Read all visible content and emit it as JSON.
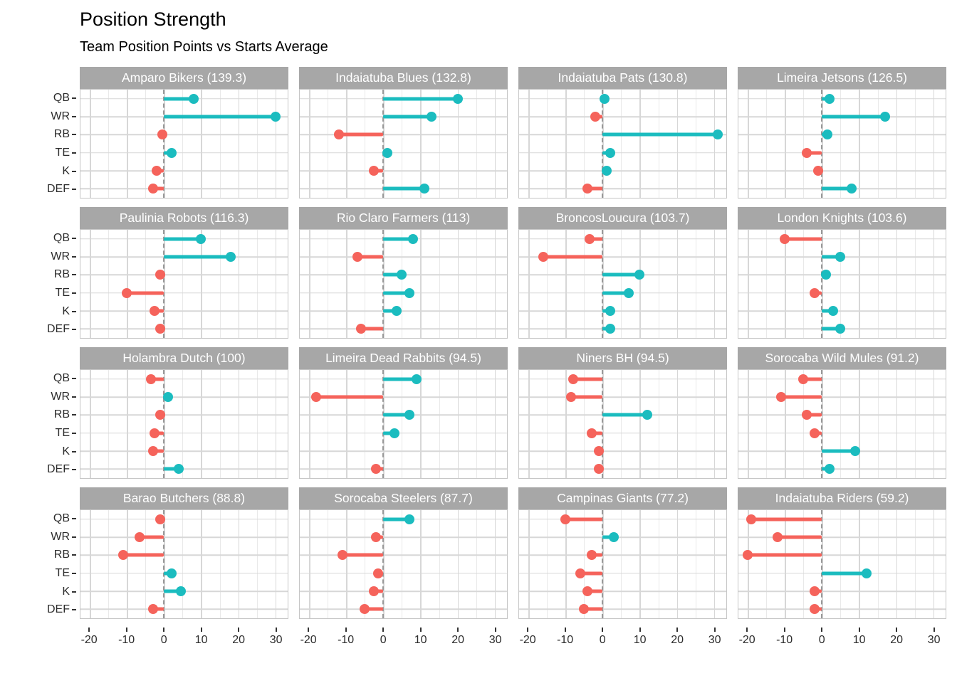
{
  "title": "Position Strength",
  "subtitle": "Team Position Points vs Starts Average",
  "chart_data": {
    "type": "lollipop_facets",
    "title": "Position Strength",
    "subtitle": "Team Position Points vs Starts Average",
    "categories": [
      "QB",
      "WR",
      "RB",
      "TE",
      "K",
      "DEF"
    ],
    "x_axis": {
      "tick_labels": [
        "-20",
        "-10",
        "0",
        "10",
        "20",
        "30"
      ],
      "tick_values": [
        -20,
        -10,
        0,
        10,
        20,
        30
      ],
      "minor_values": [
        -15,
        -5,
        5,
        15,
        25
      ],
      "domain": [
        -22.5,
        33.3
      ]
    },
    "layout": {
      "grid": "4x4",
      "legend": "none",
      "zero_line": "dashed",
      "facet_columns": 4
    },
    "colors": {
      "positive": "#1bbcbf",
      "negative": "#f5635b",
      "strip_bg": "#a7a7a7",
      "strip_text": "#ffffff",
      "grid_major": "#d7d7d7",
      "grid_minor": "#e9e9e9",
      "zero_line": "#999999",
      "panel_border": "#c6c6c6"
    },
    "facets": [
      {
        "label": "Amparo Bikers (139.3)",
        "values": [
          8,
          30,
          -0.5,
          2,
          -2,
          -3
        ]
      },
      {
        "label": "Indaiatuba Blues (132.8)",
        "values": [
          20,
          13,
          -12,
          1,
          -2.5,
          11
        ]
      },
      {
        "label": "Indaiatuba Pats (130.8)",
        "values": [
          0.5,
          -2,
          31,
          2,
          1,
          -4
        ]
      },
      {
        "label": "Limeira Jetsons (126.5)",
        "values": [
          2,
          17,
          1.5,
          -4,
          -1,
          8
        ]
      },
      {
        "label": "Paulinia Robots (116.3)",
        "values": [
          10,
          18,
          -1,
          -10,
          -2.5,
          -1
        ]
      },
      {
        "label": "Rio Claro Farmers (113)",
        "values": [
          8,
          -7,
          5,
          7,
          3.5,
          -6
        ]
      },
      {
        "label": "BroncosLoucura (103.7)",
        "values": [
          -3.5,
          -16,
          10,
          7,
          2,
          2
        ]
      },
      {
        "label": "London Knights (103.6)",
        "values": [
          -10,
          5,
          1,
          -2,
          3,
          5
        ]
      },
      {
        "label": "Holambra Dutch (100)",
        "values": [
          -3.5,
          1,
          -1,
          -2.5,
          -3,
          4
        ]
      },
      {
        "label": "Limeira Dead Rabbits (94.5)",
        "values": [
          9,
          -18,
          7,
          3,
          null,
          -2
        ]
      },
      {
        "label": "Niners BH (94.5)",
        "values": [
          -8,
          -8.5,
          12,
          -3,
          -1,
          -1
        ]
      },
      {
        "label": "Sorocaba Wild Mules (91.2)",
        "values": [
          -5,
          -11,
          -4,
          -2,
          9,
          2
        ]
      },
      {
        "label": "Barao Butchers (88.8)",
        "values": [
          -1,
          -6.5,
          -11,
          2,
          4.5,
          -3
        ]
      },
      {
        "label": "Sorocaba Steelers (87.7)",
        "values": [
          7,
          -2,
          -11,
          -1.5,
          -2.5,
          -5
        ]
      },
      {
        "label": "Campinas Giants (77.2)",
        "values": [
          -10,
          3,
          -3,
          -6,
          -4,
          -5
        ]
      },
      {
        "label": "Indaiatuba Riders (59.2)",
        "values": [
          -19,
          -12,
          -20,
          12,
          -2,
          -2
        ]
      }
    ]
  }
}
